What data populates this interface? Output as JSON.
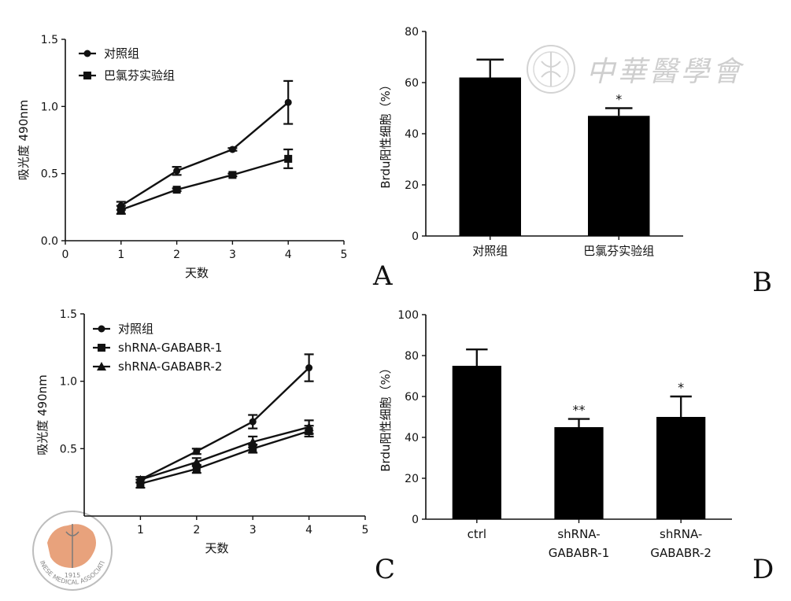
{
  "chart_data": [
    {
      "panel": "A",
      "type": "line",
      "xlabel": "天数",
      "ylabel": "吸光度 490nm",
      "xlim": [
        0,
        5
      ],
      "ylim": [
        0,
        1.5
      ],
      "xticks": [
        "0",
        "1",
        "2",
        "3",
        "4",
        "5"
      ],
      "yticks": [
        "0.0",
        "0.5",
        "1.0",
        "1.5"
      ],
      "legend_position": "top-left",
      "series": [
        {
          "name": "对照组",
          "marker": "circle",
          "x": [
            1,
            2,
            3,
            4
          ],
          "y": [
            0.26,
            0.52,
            0.68,
            1.03
          ],
          "err": [
            0.03,
            0.03,
            0.01,
            0.16
          ]
        },
        {
          "name": "巴氯芬实验组",
          "marker": "square",
          "x": [
            1,
            2,
            3,
            4
          ],
          "y": [
            0.23,
            0.38,
            0.49,
            0.61
          ],
          "err": [
            0.03,
            0.01,
            0.01,
            0.07
          ]
        }
      ]
    },
    {
      "panel": "B",
      "type": "bar",
      "ylabel": "Brdu阳性细胞（%）",
      "ylim": [
        0,
        80
      ],
      "yticks": [
        "0",
        "20",
        "40",
        "60",
        "80"
      ],
      "categories": [
        "对照组",
        "巴氯芬实验组"
      ],
      "values": [
        62,
        47
      ],
      "err": [
        7,
        3
      ],
      "annotations": [
        "",
        "*"
      ]
    },
    {
      "panel": "C",
      "type": "line",
      "xlabel": "天数",
      "ylabel": "吸光度 490nm",
      "xlim": [
        0,
        5
      ],
      "ylim": [
        0,
        1.5
      ],
      "xticks": [
        "1",
        "2",
        "3",
        "4",
        "5"
      ],
      "yticks": [
        "0.5",
        "1.0",
        "1.5"
      ],
      "legend_position": "top-left",
      "series": [
        {
          "name": "对照组",
          "marker": "circle",
          "x": [
            1,
            2,
            3,
            4
          ],
          "y": [
            0.27,
            0.48,
            0.7,
            1.1
          ],
          "err": [
            0.02,
            0.02,
            0.05,
            0.1
          ]
        },
        {
          "name": "shRNA-GABABR-1",
          "marker": "square",
          "x": [
            1,
            2,
            3,
            4
          ],
          "y": [
            0.24,
            0.35,
            0.5,
            0.63
          ],
          "err": [
            0.03,
            0.03,
            0.03,
            0.04
          ]
        },
        {
          "name": "shRNA-GABABR-2",
          "marker": "triangle",
          "x": [
            1,
            2,
            3,
            4
          ],
          "y": [
            0.27,
            0.4,
            0.55,
            0.66
          ],
          "err": [
            0.02,
            0.03,
            0.04,
            0.05
          ]
        }
      ]
    },
    {
      "panel": "D",
      "type": "bar",
      "ylabel": "Brdu阳性细胞（%）",
      "ylim": [
        0,
        100
      ],
      "yticks": [
        "0",
        "20",
        "40",
        "60",
        "80",
        "100"
      ],
      "categories": [
        "ctrl",
        "shRNA-GABABR-1",
        "shRNA-GABABR-2"
      ],
      "category_lines": [
        [
          "ctrl"
        ],
        [
          "shRNA-",
          "GABABR-1"
        ],
        [
          "shRNA-",
          "GABABR-2"
        ]
      ],
      "values": [
        75,
        45,
        50
      ],
      "err": [
        8,
        4,
        10
      ],
      "annotations": [
        "",
        "**",
        "*"
      ]
    }
  ],
  "watermark": {
    "journal_name": "中華醫學會",
    "badge_text": "CHINESE MEDICAL ASSOCIATION",
    "badge_year": "1915"
  },
  "colors": {
    "ink": "#111111",
    "bar": "#000000",
    "wm": "#c9c9c9",
    "badge": "#e8a27c"
  }
}
